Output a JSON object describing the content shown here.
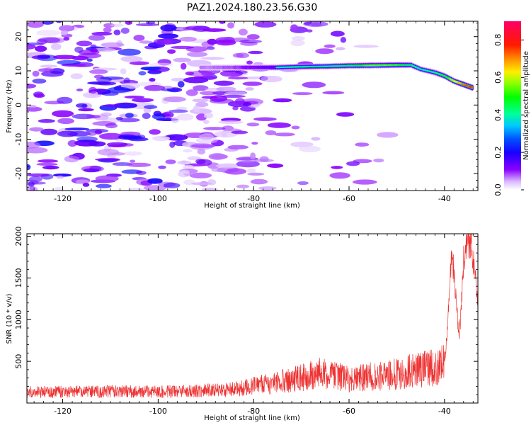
{
  "title": "PAZ1.2024.180.23.56.G30",
  "chart_data": [
    {
      "type": "heatmap",
      "xlabel": "Height of straight line (km)",
      "ylabel": "Frequency (Hz)",
      "xlim": [
        -127.5,
        -33
      ],
      "ylim": [
        -25,
        24.5
      ],
      "xticks": [
        -120,
        -100,
        -80,
        -60,
        -40
      ],
      "yticks": [
        -20,
        -10,
        0,
        10,
        20
      ],
      "colorbar": {
        "label": "Normalized spectral amplitude",
        "ticks": [
          0.0,
          0.2,
          0.4,
          0.6,
          0.8
        ],
        "range": [
          0,
          0.9
        ],
        "colormap": "gist_rainbow_r (purple → blue → cyan → green → yellow → red → magenta)"
      },
      "dominant_ridge": {
        "x": [
          -91,
          -85,
          -80,
          -75,
          -70,
          -65,
          -60,
          -55,
          -50,
          -47,
          -45,
          -42,
          -40,
          -38,
          -36,
          -34
        ],
        "y": [
          11,
          11,
          11,
          11,
          11.2,
          11.3,
          11.5,
          11.6,
          11.7,
          11.7,
          10.5,
          9.5,
          8.5,
          7,
          6,
          5
        ],
        "amplitude": [
          0.2,
          0.25,
          0.35,
          0.45,
          0.5,
          0.5,
          0.55,
          0.65,
          0.6,
          0.5,
          0.45,
          0.5,
          0.55,
          0.7,
          0.85,
          0.9
        ]
      },
      "noise_region": {
        "x_range": [
          -127.5,
          -80
        ],
        "y_range": [
          -25,
          24.5
        ],
        "amplitude_range": [
          0.0,
          0.25
        ]
      },
      "grid": false
    },
    {
      "type": "line",
      "xlabel": "Height of straight line (km)",
      "ylabel": "SNR (10 * v/v)",
      "xlim": [
        -127.5,
        -33
      ],
      "ylim": [
        0,
        2030
      ],
      "xticks": [
        -120,
        -100,
        -80,
        -60,
        -40
      ],
      "yticks": [
        500,
        1000,
        1500,
        2000
      ],
      "series": [
        {
          "color": "#ee3333",
          "x": [
            -127.5,
            -120,
            -110,
            -100,
            -90,
            -85,
            -80,
            -75,
            -70,
            -67,
            -65,
            -62,
            -60,
            -58,
            -55,
            -52,
            -50,
            -47,
            -45,
            -43,
            -41,
            -40,
            -39.5,
            -39,
            -38.5,
            -38,
            -37.5,
            -37,
            -36.5,
            -36,
            -35.5,
            -35,
            -34.5,
            -34,
            -33.5,
            -33
          ],
          "y": [
            130,
            135,
            140,
            135,
            150,
            160,
            200,
            250,
            300,
            360,
            340,
            320,
            280,
            300,
            320,
            330,
            350,
            380,
            400,
            420,
            440,
            500,
            800,
            1400,
            1700,
            1600,
            1200,
            800,
            1100,
            1700,
            1900,
            2000,
            1900,
            1750,
            1450,
            1100
          ]
        }
      ],
      "grid": false
    }
  ]
}
